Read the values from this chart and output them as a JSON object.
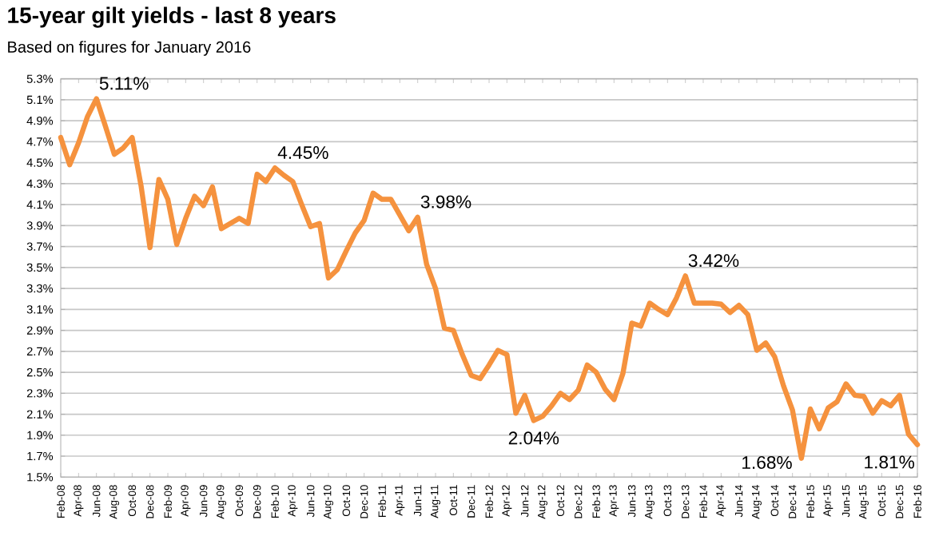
{
  "chart_data": {
    "type": "line",
    "title": "15-year gilt yields - last 8 years",
    "subtitle": "Based on figures for January 2016",
    "categories": [
      "Feb-08",
      null,
      "Apr-08",
      null,
      "Jun-08",
      null,
      "Aug-08",
      null,
      "Oct-08",
      null,
      "Dec-08",
      null,
      "Feb-09",
      null,
      "Apr-09",
      null,
      "Jun-09",
      null,
      "Aug-09",
      null,
      "Oct-09",
      null,
      "Dec-09",
      null,
      "Feb-10",
      null,
      "Apr-10",
      null,
      "Jun-10",
      null,
      "Aug-10",
      null,
      "Oct-10",
      null,
      "Dec-10",
      null,
      "Feb-11",
      null,
      "Apr-11",
      null,
      "Jun-11",
      null,
      "Aug-11",
      null,
      "Oct-11",
      null,
      "Dec-11",
      null,
      "Feb-12",
      null,
      "Apr-12",
      null,
      "Jun-12",
      null,
      "Aug-12",
      null,
      "Oct-12",
      null,
      "Dec-12",
      null,
      "Feb-13",
      null,
      "Apr-13",
      null,
      "Jun-13",
      null,
      "Aug-13",
      null,
      "Oct-13",
      null,
      "Dec-13",
      null,
      "Feb-14",
      null,
      "Apr-14",
      null,
      "Jun-14",
      null,
      "Aug-14",
      null,
      "Oct-14",
      null,
      "Dec-14",
      null,
      "Feb-15",
      null,
      "Apr-15",
      null,
      "Jun-15",
      null,
      "Aug-15",
      null,
      "Oct-15",
      null,
      "Dec-15",
      null,
      "Feb-16"
    ],
    "values": [
      4.74,
      4.48,
      4.69,
      4.94,
      5.11,
      4.85,
      4.58,
      4.64,
      4.74,
      4.28,
      3.69,
      4.34,
      4.15,
      3.72,
      3.97,
      4.18,
      4.09,
      4.27,
      3.87,
      3.92,
      3.97,
      3.92,
      4.39,
      4.32,
      4.45,
      4.38,
      4.32,
      4.1,
      3.89,
      3.92,
      3.4,
      3.48,
      3.66,
      3.83,
      3.95,
      4.21,
      4.15,
      4.15,
      4.0,
      3.85,
      3.98,
      3.53,
      3.3,
      2.92,
      2.9,
      2.67,
      2.47,
      2.44,
      2.57,
      2.71,
      2.67,
      2.11,
      2.28,
      2.04,
      2.08,
      2.18,
      2.3,
      2.24,
      2.33,
      2.57,
      2.5,
      2.34,
      2.24,
      2.49,
      2.97,
      2.94,
      3.16,
      3.1,
      3.05,
      3.21,
      3.42,
      3.16,
      3.16,
      3.16,
      3.15,
      3.07,
      3.14,
      3.05,
      2.71,
      2.78,
      2.65,
      2.37,
      2.14,
      1.68,
      2.15,
      1.96,
      2.16,
      2.22,
      2.39,
      2.28,
      2.27,
      2.11,
      2.23,
      2.18,
      2.28,
      1.91,
      1.81
    ],
    "value_labels": [
      null,
      null,
      null,
      null,
      "5.11%",
      null,
      null,
      null,
      null,
      null,
      null,
      null,
      null,
      null,
      null,
      null,
      null,
      null,
      null,
      null,
      null,
      null,
      null,
      null,
      "4.45%",
      null,
      null,
      null,
      null,
      null,
      null,
      null,
      null,
      null,
      null,
      null,
      null,
      null,
      null,
      null,
      "3.98%",
      null,
      null,
      null,
      null,
      null,
      null,
      null,
      null,
      null,
      null,
      null,
      null,
      "2.04%",
      null,
      null,
      null,
      null,
      null,
      null,
      null,
      null,
      null,
      null,
      null,
      null,
      null,
      null,
      null,
      null,
      "3.42%",
      null,
      null,
      null,
      null,
      null,
      null,
      null,
      null,
      null,
      null,
      null,
      null,
      "1.68%",
      null,
      null,
      null,
      null,
      null,
      null,
      null,
      null,
      null,
      null,
      null,
      null,
      "1.81%"
    ],
    "color": "#f5923e",
    "ylim": [
      1.5,
      5.3
    ],
    "yticks": [
      {
        "value": 1.5,
        "label": "1.5%"
      },
      {
        "value": 1.7,
        "label": "1.7%"
      },
      {
        "value": 1.9,
        "label": "1.9%"
      },
      {
        "value": 2.1,
        "label": "2.1%"
      },
      {
        "value": 2.3,
        "label": "2.3%"
      },
      {
        "value": 2.5,
        "label": "2.5%"
      },
      {
        "value": 2.7,
        "label": "2.7%"
      },
      {
        "value": 2.9,
        "label": "2.9%"
      },
      {
        "value": 3.1,
        "label": "3.1%"
      },
      {
        "value": 3.3,
        "label": "3.3%"
      },
      {
        "value": 3.5,
        "label": "3.5%"
      },
      {
        "value": 3.7,
        "label": "3.7%"
      },
      {
        "value": 3.9,
        "label": "3.9%"
      },
      {
        "value": 4.1,
        "label": "4.1%"
      },
      {
        "value": 4.3,
        "label": "4.3%"
      },
      {
        "value": 4.5,
        "label": "4.5%"
      },
      {
        "value": 4.7,
        "label": "4.7%"
      },
      {
        "value": 4.9,
        "label": "4.9%"
      },
      {
        "value": 5.1,
        "label": "5.1%"
      },
      {
        "value": 5.3,
        "label": "5.3%"
      }
    ],
    "grid": "y",
    "marker": "none",
    "line_style": "solid"
  }
}
